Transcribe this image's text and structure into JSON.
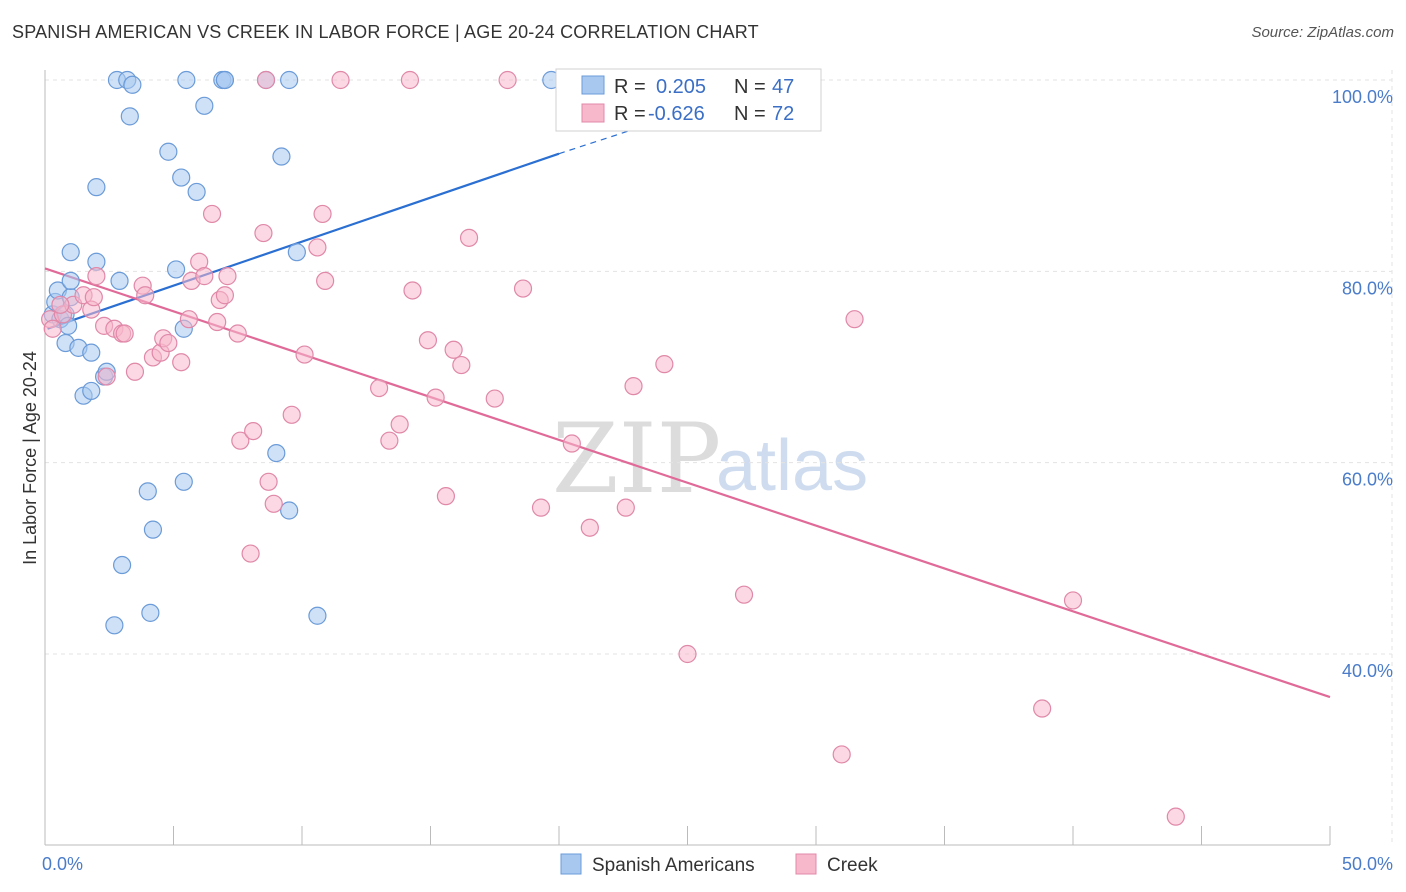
{
  "title": "SPANISH AMERICAN VS CREEK IN LABOR FORCE | AGE 20-24 CORRELATION CHART",
  "source": "Source: ZipAtlas.com",
  "watermark": {
    "zip": "ZIP",
    "atlas": "atlas"
  },
  "legend": {
    "r_label": "R =",
    "n_label": "N =",
    "entries": [
      {
        "r": "0.205",
        "n": "47",
        "color": "#a8c8f0",
        "stroke": "#6b9bd8"
      },
      {
        "r": "-0.626",
        "n": "72",
        "color": "#f7b8cc",
        "stroke": "#e088a8"
      }
    ]
  },
  "chart_data": {
    "type": "scatter",
    "xlabel": "",
    "ylabel": "In Labor Force | Age 20-24",
    "xlim": [
      0,
      50
    ],
    "ylim": [
      20,
      101
    ],
    "x_tick_labels": [
      {
        "value": 0,
        "label": "0.0%"
      },
      {
        "value": 50,
        "label": "50.0%"
      }
    ],
    "x_minor_ticks": [
      5,
      10,
      15,
      20,
      25,
      30,
      35,
      40,
      45,
      50
    ],
    "y_tick_labels": [
      {
        "value": 40,
        "label": "40.0%"
      },
      {
        "value": 60,
        "label": "60.0%"
      },
      {
        "value": 80,
        "label": "80.0%"
      },
      {
        "value": 100,
        "label": "100.0%"
      }
    ],
    "series": [
      {
        "name": "Spanish Americans",
        "color": "#a8c8f0",
        "stroke": "#6b9bd8",
        "line_color": "#2a6fd1",
        "trend": {
          "x0": 0.1,
          "y0": 74.0,
          "x1": 20.0,
          "y1": 92.3,
          "dash_to_x": 24.0,
          "dash_to_y": 95.8
        },
        "points": [
          [
            0.3,
            75.5
          ],
          [
            0.4,
            76.8
          ],
          [
            0.5,
            78.0
          ],
          [
            0.6,
            75.0
          ],
          [
            0.8,
            75.5
          ],
          [
            0.9,
            74.3
          ],
          [
            1.0,
            77.3
          ],
          [
            0.8,
            72.5
          ],
          [
            1.3,
            72.0
          ],
          [
            1.8,
            71.5
          ],
          [
            1.5,
            67.0
          ],
          [
            1.8,
            67.5
          ],
          [
            2.3,
            69.0
          ],
          [
            2.4,
            69.5
          ],
          [
            1.0,
            79.0
          ],
          [
            1.0,
            82.0
          ],
          [
            2.0,
            81.0
          ],
          [
            2.9,
            79.0
          ],
          [
            2.0,
            88.8
          ],
          [
            3.3,
            96.2
          ],
          [
            2.8,
            100.0
          ],
          [
            3.2,
            100.0
          ],
          [
            3.4,
            99.5
          ],
          [
            4.8,
            92.5
          ],
          [
            5.3,
            89.8
          ],
          [
            5.9,
            88.3
          ],
          [
            5.5,
            100.0
          ],
          [
            6.2,
            97.3
          ],
          [
            6.9,
            100.0
          ],
          [
            7.0,
            100.0
          ],
          [
            7.0,
            100.0
          ],
          [
            8.6,
            100.0
          ],
          [
            9.2,
            92.0
          ],
          [
            9.5,
            100.0
          ],
          [
            9.8,
            82.0
          ],
          [
            5.1,
            80.2
          ],
          [
            5.4,
            74.0
          ],
          [
            9.0,
            61.0
          ],
          [
            9.5,
            55.0
          ],
          [
            4.0,
            57.0
          ],
          [
            4.2,
            53.0
          ],
          [
            5.4,
            58.0
          ],
          [
            3.0,
            49.3
          ],
          [
            2.7,
            43.0
          ],
          [
            4.1,
            44.3
          ],
          [
            10.6,
            44.0
          ],
          [
            19.7,
            100.0
          ]
        ]
      },
      {
        "name": "Creek",
        "color": "#f7b8cc",
        "stroke": "#e088a8",
        "line_color": "#e06a98",
        "trend": {
          "x0": 0.0,
          "y0": 80.3,
          "x1": 50.0,
          "y1": 35.5
        },
        "points": [
          [
            0.2,
            75.0
          ],
          [
            0.7,
            75.5
          ],
          [
            1.1,
            76.5
          ],
          [
            1.5,
            77.5
          ],
          [
            2.0,
            79.5
          ],
          [
            1.8,
            76.0
          ],
          [
            2.3,
            74.3
          ],
          [
            2.7,
            74.0
          ],
          [
            3.0,
            73.5
          ],
          [
            3.1,
            73.5
          ],
          [
            2.4,
            69.0
          ],
          [
            3.5,
            69.5
          ],
          [
            3.8,
            78.5
          ],
          [
            3.9,
            77.5
          ],
          [
            4.2,
            71.0
          ],
          [
            4.5,
            71.5
          ],
          [
            4.6,
            73.0
          ],
          [
            4.8,
            72.5
          ],
          [
            5.3,
            70.5
          ],
          [
            5.6,
            75.0
          ],
          [
            5.7,
            79.0
          ],
          [
            6.0,
            81.0
          ],
          [
            6.2,
            79.5
          ],
          [
            6.5,
            86.0
          ],
          [
            6.8,
            77.0
          ],
          [
            7.0,
            77.5
          ],
          [
            7.1,
            79.5
          ],
          [
            6.7,
            74.7
          ],
          [
            7.5,
            73.5
          ],
          [
            7.6,
            62.3
          ],
          [
            8.1,
            63.3
          ],
          [
            8.5,
            84.0
          ],
          [
            8.0,
            50.5
          ],
          [
            8.7,
            58.0
          ],
          [
            8.9,
            55.7
          ],
          [
            9.6,
            65.0
          ],
          [
            10.1,
            71.3
          ],
          [
            10.6,
            82.5
          ],
          [
            10.8,
            86.0
          ],
          [
            10.9,
            79.0
          ],
          [
            8.6,
            100.0
          ],
          [
            11.5,
            100.0
          ],
          [
            13.0,
            67.8
          ],
          [
            13.4,
            62.3
          ],
          [
            13.8,
            64.0
          ],
          [
            14.3,
            78.0
          ],
          [
            14.9,
            72.8
          ],
          [
            15.2,
            66.8
          ],
          [
            15.6,
            56.5
          ],
          [
            15.9,
            71.8
          ],
          [
            16.2,
            70.2
          ],
          [
            16.5,
            83.5
          ],
          [
            17.5,
            66.7
          ],
          [
            18.6,
            78.2
          ],
          [
            19.3,
            55.3
          ],
          [
            14.2,
            100.0
          ],
          [
            18.0,
            100.0
          ],
          [
            20.5,
            62.0
          ],
          [
            21.2,
            53.2
          ],
          [
            22.6,
            55.3
          ],
          [
            22.9,
            68.0
          ],
          [
            24.1,
            70.3
          ],
          [
            25.0,
            40.0
          ],
          [
            27.2,
            46.2
          ],
          [
            31.0,
            29.5
          ],
          [
            31.5,
            75.0
          ],
          [
            38.8,
            34.3
          ],
          [
            40.0,
            45.6
          ],
          [
            44.0,
            23.0
          ],
          [
            0.3,
            74.0
          ],
          [
            1.9,
            77.3
          ],
          [
            0.6,
            76.5
          ]
        ]
      }
    ]
  },
  "bottom_legend": [
    "Spanish Americans",
    "Creek"
  ]
}
